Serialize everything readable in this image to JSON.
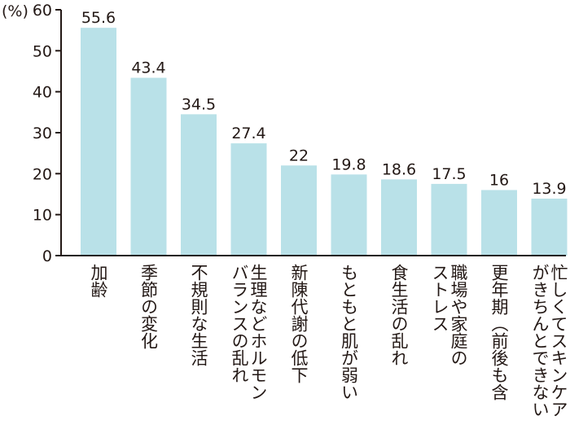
{
  "chart_data": {
    "type": "bar",
    "unit_label": "(%)",
    "categories": [
      [
        "加齢"
      ],
      [
        "季節の変化"
      ],
      [
        "不規則な生活"
      ],
      [
        "生理などホルモン",
        "バランスの乱れ"
      ],
      [
        "新陳代謝の低下"
      ],
      [
        "もともと肌が弱い"
      ],
      [
        "食生活の乱れ"
      ],
      [
        "職場や家庭の",
        "ストレス"
      ],
      [
        "更年期（前後も含"
      ],
      [
        "忙しくてスキンケア",
        "がきちんとできない"
      ]
    ],
    "values": [
      55.6,
      43.4,
      34.5,
      27.4,
      22,
      19.8,
      18.6,
      17.5,
      16,
      13.9
    ],
    "value_labels": [
      "55.6",
      "43.4",
      "34.5",
      "27.4",
      "22",
      "19.8",
      "18.6",
      "17.5",
      "16",
      "13.9"
    ],
    "y_ticks": [
      0,
      10,
      20,
      30,
      40,
      50,
      60
    ],
    "ylim": [
      0,
      60
    ],
    "bar_color": "#b9e1e8",
    "axis_color": "#231815",
    "grid": false
  }
}
